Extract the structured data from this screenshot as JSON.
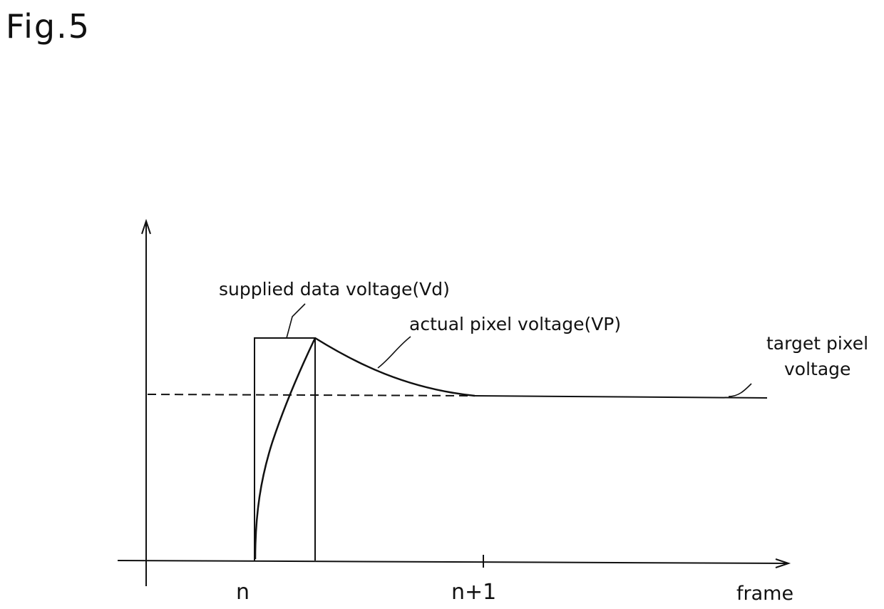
{
  "figure": {
    "title": "Fig.5"
  },
  "axes": {
    "x_label": "frame",
    "ticks": [
      "n",
      "n+1"
    ]
  },
  "labels": {
    "supplied": "supplied data voltage(Vd)",
    "actual": "actual pixel voltage(VP)",
    "target_line1": "target pixel",
    "target_line2": "voltage"
  }
}
